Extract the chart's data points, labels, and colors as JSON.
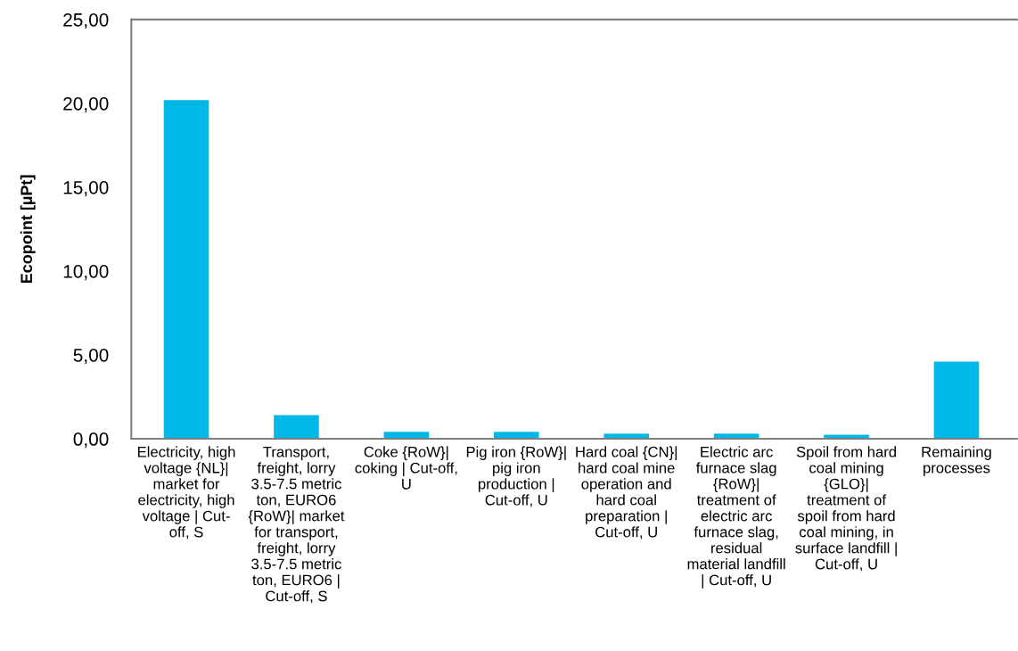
{
  "chart_data": {
    "type": "bar",
    "ylabel": "Ecopoint [µPt]",
    "categories": [
      "Electricity, high\nvoltage {NL}|\nmarket for\nelectricity, high\nvoltage | Cut-\noff, S",
      "Transport,\nfreight, lorry\n3.5-7.5 metric\nton, EURO6\n{RoW}| market\nfor transport,\nfreight, lorry\n3.5-7.5 metric\nton, EURO6 |\nCut-off, S",
      "Coke {RoW}|\ncoking | Cut-off,\nU",
      "Pig iron {RoW}|\npig iron\nproduction |\nCut-off, U",
      "Hard coal {CN}|\nhard coal mine\noperation and\nhard coal\npreparation |\nCut-off, U",
      "Electric arc\nfurnace slag\n{RoW}|\ntreatment of\nelectric arc\nfurnace slag,\nresidual\nmaterial landfill\n| Cut-off, U",
      "Spoil from hard\ncoal mining\n{GLO}|\ntreatment of\nspoil from hard\ncoal mining, in\nsurface landfill |\nCut-off, U",
      "Remaining\nprocesses"
    ],
    "values": [
      20.2,
      1.41,
      0.41,
      0.41,
      0.31,
      0.31,
      0.24,
      4.6
    ],
    "color": "#00b8e8",
    "ylim": [
      0,
      25
    ],
    "yticks": [
      {
        "value": 0,
        "label": "0,00"
      },
      {
        "value": 5,
        "label": "5,00"
      },
      {
        "value": 10,
        "label": "10,00"
      },
      {
        "value": 15,
        "label": "15,00"
      },
      {
        "value": 20,
        "label": "20,00"
      },
      {
        "value": 25,
        "label": "25,00"
      }
    ],
    "grid": false,
    "legend": false
  }
}
